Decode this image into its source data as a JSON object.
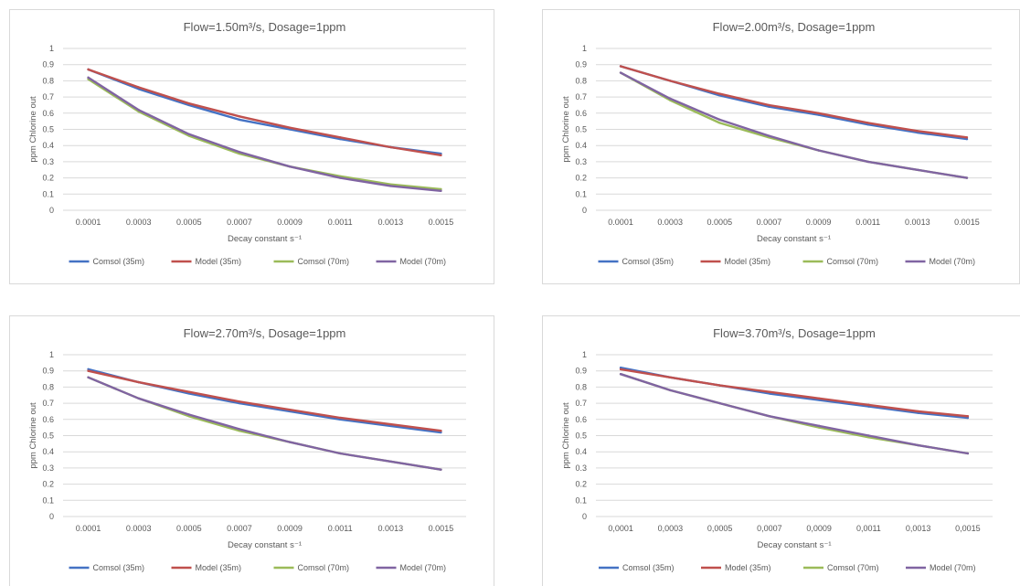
{
  "colors": {
    "comsol_35": "#4472c4",
    "model_35": "#c0504d",
    "comsol_70": "#9bbb59",
    "model_70": "#8064a2"
  },
  "chart_data": [
    {
      "type": "line",
      "title": "Flow=1.50m³/s, Dosage=1ppm",
      "xlabel": "Decay constant s⁻¹",
      "ylabel": "ppm Chlorine out",
      "ylim": [
        0,
        1
      ],
      "yticks": [
        "0",
        "0.1",
        "0.2",
        "0.3",
        "0.4",
        "0.5",
        "0.6",
        "0.7",
        "0.8",
        "0.9",
        "1"
      ],
      "grid": true,
      "legend": "bottom",
      "categories": [
        "0.0001",
        "0.0003",
        "0.0005",
        "0.0007",
        "0.0009",
        "0.0011",
        "0.0013",
        "0.0015"
      ],
      "series": [
        {
          "name": "Comsol (35m)",
          "values": [
            0.87,
            0.75,
            0.65,
            0.56,
            0.5,
            0.44,
            0.39,
            0.35
          ]
        },
        {
          "name": "Model (35m)",
          "values": [
            0.87,
            0.76,
            0.66,
            0.58,
            0.51,
            0.45,
            0.39,
            0.34
          ]
        },
        {
          "name": "Comsol (70m)",
          "values": [
            0.81,
            0.61,
            0.46,
            0.35,
            0.27,
            0.21,
            0.16,
            0.13
          ]
        },
        {
          "name": "Model (70m)",
          "values": [
            0.82,
            0.62,
            0.47,
            0.36,
            0.27,
            0.2,
            0.15,
            0.12
          ]
        }
      ]
    },
    {
      "type": "line",
      "title": "Flow=2.00m³/s, Dosage=1ppm",
      "xlabel": "Decay constant s⁻¹",
      "ylabel": "ppm Chlorine out",
      "ylim": [
        0,
        1
      ],
      "yticks": [
        "0",
        "0.1",
        "0.2",
        "0.3",
        "0.4",
        "0.5",
        "0.6",
        "0.7",
        "0.8",
        "0.9",
        "1"
      ],
      "grid": true,
      "legend": "bottom",
      "categories": [
        "0.0001",
        "0.0003",
        "0.0005",
        "0.0007",
        "0.0009",
        "0.0011",
        "0.0013",
        "0.0015"
      ],
      "series": [
        {
          "name": "Comsol (35m)",
          "values": [
            0.89,
            0.8,
            0.71,
            0.64,
            0.59,
            0.53,
            0.48,
            0.44
          ]
        },
        {
          "name": "Model (35m)",
          "values": [
            0.89,
            0.8,
            0.72,
            0.65,
            0.6,
            0.54,
            0.49,
            0.45
          ]
        },
        {
          "name": "Comsol (70m)",
          "values": [
            0.85,
            0.68,
            0.54,
            0.45,
            0.37,
            0.3,
            0.25,
            0.2
          ]
        },
        {
          "name": "Model (70m)",
          "values": [
            0.85,
            0.69,
            0.56,
            0.46,
            0.37,
            0.3,
            0.25,
            0.2
          ]
        }
      ]
    },
    {
      "type": "line",
      "title": "Flow=2.70m³/s, Dosage=1ppm",
      "xlabel": "Decay constant s⁻¹",
      "ylabel": "ppm Chlorine out",
      "ylim": [
        0,
        1
      ],
      "yticks": [
        "0",
        "0.1",
        "0.2",
        "0.3",
        "0.4",
        "0.5",
        "0.6",
        "0.7",
        "0.8",
        "0.9",
        "1"
      ],
      "grid": true,
      "legend": "bottom",
      "categories": [
        "0.0001",
        "0.0003",
        "0.0005",
        "0.0007",
        "0.0009",
        "0.0011",
        "0.0013",
        "0.0015"
      ],
      "series": [
        {
          "name": "Comsol (35m)",
          "values": [
            0.91,
            0.83,
            0.76,
            0.7,
            0.65,
            0.6,
            0.56,
            0.52
          ]
        },
        {
          "name": "Model (35m)",
          "values": [
            0.9,
            0.83,
            0.77,
            0.71,
            0.66,
            0.61,
            0.57,
            0.53
          ]
        },
        {
          "name": "Comsol (70m)",
          "values": [
            0.86,
            0.73,
            0.62,
            0.53,
            0.46,
            0.39,
            0.34,
            0.29
          ]
        },
        {
          "name": "Model (70m)",
          "values": [
            0.86,
            0.73,
            0.63,
            0.54,
            0.46,
            0.39,
            0.34,
            0.29
          ]
        }
      ]
    },
    {
      "type": "line",
      "title": "Flow=3.70m³/s, Dosage=1ppm",
      "xlabel": "Decay constant s⁻¹",
      "ylabel": "ppm Chlorine out",
      "ylim": [
        0,
        1
      ],
      "yticks": [
        "0",
        "0.1",
        "0.2",
        "0.3",
        "0.4",
        "0.5",
        "0.6",
        "0.7",
        "0.8",
        "0.9",
        "1"
      ],
      "grid": true,
      "legend": "bottom",
      "categories": [
        "0,0001",
        "0,0003",
        "0,0005",
        "0,0007",
        "0,0009",
        "0,0011",
        "0,0013",
        "0,0015"
      ],
      "series": [
        {
          "name": "Comsol (35m)",
          "values": [
            0.92,
            0.86,
            0.81,
            0.76,
            0.72,
            0.68,
            0.64,
            0.61
          ]
        },
        {
          "name": "Model (35m)",
          "values": [
            0.91,
            0.86,
            0.81,
            0.77,
            0.73,
            0.69,
            0.65,
            0.62
          ]
        },
        {
          "name": "Comsol (70m)",
          "values": [
            0.88,
            0.78,
            0.7,
            0.62,
            0.55,
            0.49,
            0.44,
            0.39
          ]
        },
        {
          "name": "Model (70m)",
          "values": [
            0.88,
            0.78,
            0.7,
            0.62,
            0.56,
            0.5,
            0.44,
            0.39
          ]
        }
      ]
    }
  ]
}
